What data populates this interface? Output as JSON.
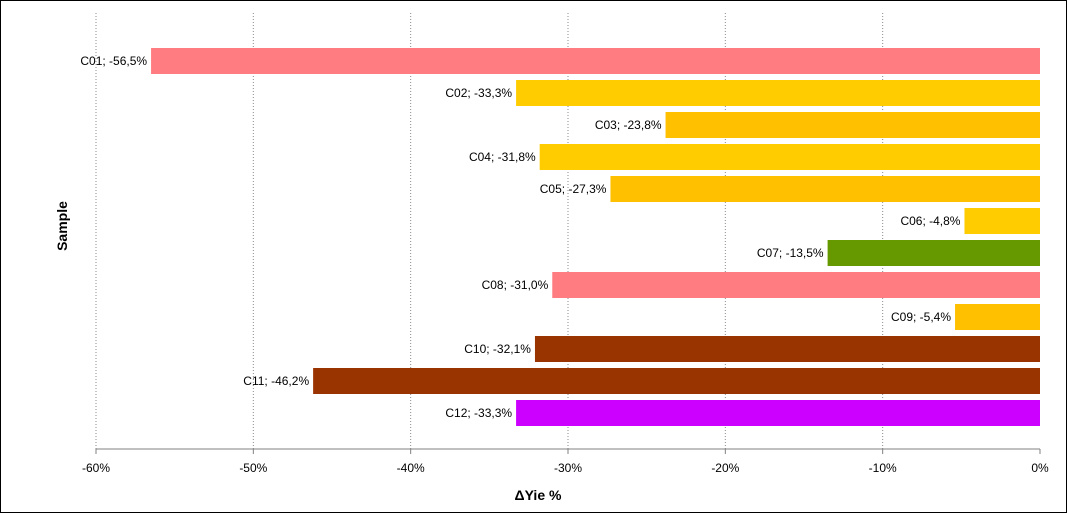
{
  "chart_data": {
    "type": "bar",
    "orientation": "horizontal",
    "title": "",
    "xlabel": "ΔYie %",
    "ylabel": "Sample",
    "xlim": [
      -60,
      0
    ],
    "x_ticks": [
      -60,
      -50,
      -40,
      -30,
      -20,
      -10,
      0
    ],
    "x_tick_suffix": "%",
    "grid": "vertical dotted",
    "legend": "none",
    "bars": [
      {
        "category": "C01",
        "value": -56.5,
        "label": "C01; -56,5%",
        "color": "#ff7c80"
      },
      {
        "category": "C02",
        "value": -33.3,
        "label": "C02; -33,3%",
        "color": "#ffcc00"
      },
      {
        "category": "C03",
        "value": -23.8,
        "label": "C03; -23,8%",
        "color": "#ffc000"
      },
      {
        "category": "C04",
        "value": -31.8,
        "label": "C04; -31,8%",
        "color": "#ffcc00"
      },
      {
        "category": "C05",
        "value": -27.3,
        "label": "C05; -27,3%",
        "color": "#ffc000"
      },
      {
        "category": "C06",
        "value": -4.8,
        "label": "C06; -4,8%",
        "color": "#ffcc00"
      },
      {
        "category": "C07",
        "value": -13.5,
        "label": "C07; -13,5%",
        "color": "#669900"
      },
      {
        "category": "C08",
        "value": -31.0,
        "label": "C08; -31,0%",
        "color": "#ff7c80"
      },
      {
        "category": "C09",
        "value": -5.4,
        "label": "C09; -5,4%",
        "color": "#ffc000"
      },
      {
        "category": "C10",
        "value": -32.1,
        "label": "C10; -32,1%",
        "color": "#993300"
      },
      {
        "category": "C11",
        "value": -46.2,
        "label": "C11; -46,2%",
        "color": "#993300"
      },
      {
        "category": "C12",
        "value": -33.3,
        "label": "C12; -33,3%",
        "color": "#cc00ff"
      }
    ]
  }
}
